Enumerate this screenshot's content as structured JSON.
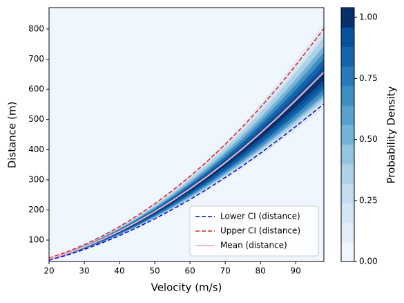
{
  "chart_data": {
    "type": "line",
    "xlabel": "Velocity (m/s)",
    "ylabel": "Distance (m)",
    "x": [
      20,
      25,
      30,
      35,
      40,
      45,
      50,
      55,
      60,
      65,
      70,
      75,
      80,
      85,
      90,
      95,
      98
    ],
    "series": [
      {
        "name": "Lower CI (distance)",
        "color": "#0000cc",
        "dash": true,
        "values": [
          33.3,
          49.6,
          68.8,
          90.5,
          114.8,
          141.5,
          170.4,
          201.6,
          234.7,
          269.8,
          307.5,
          346.6,
          388.3,
          431.5,
          476.7,
          523.4,
          551.9
        ]
      },
      {
        "name": "Upper CI (distance)",
        "color": "#e31a1c",
        "dash": true,
        "values": [
          40,
          60.3,
          84.7,
          112.8,
          144.7,
          180.7,
          220.3,
          263.9,
          311.2,
          362.1,
          417.3,
          476.3,
          540.2,
          607.6,
          679.6,
          755.2,
          801.5
        ]
      },
      {
        "name": "Mean (distance)",
        "color": "#f4b8c8",
        "dash": false,
        "values": [
          37,
          55.4,
          77.1,
          101.9,
          129.7,
          160.6,
          194.3,
          230.9,
          270.1,
          311.9,
          356.7,
          404,
          454.7,
          507.6,
          563.5,
          621.6,
          657
        ]
      }
    ],
    "xlim": [
      20,
      98
    ],
    "ylim": [
      29,
      871
    ],
    "xticks": [
      20,
      30,
      40,
      50,
      60,
      70,
      80,
      90
    ],
    "yticks": [
      100,
      200,
      300,
      400,
      500,
      600,
      700,
      800
    ],
    "legend": "lower right",
    "colorbar": {
      "label": "Probability Density",
      "lim": [
        0,
        1.04
      ],
      "ticks": [
        {
          "value": 0,
          "label": "0.00"
        },
        {
          "value": 0.25,
          "label": "0.25"
        },
        {
          "value": 0.5,
          "label": "0.50"
        },
        {
          "value": 0.75,
          "label": "0.75"
        },
        {
          "value": 1,
          "label": "1.00"
        }
      ],
      "colors": [
        "#eff6fd",
        "#e2edf8",
        "#d5e5f4",
        "#c6dbef",
        "#afd1e7",
        "#94c4df",
        "#73b3d8",
        "#58a1cf",
        "#3e8ec4",
        "#2a7ab9",
        "#1764ab",
        "#08519c",
        "#08306b"
      ]
    }
  }
}
